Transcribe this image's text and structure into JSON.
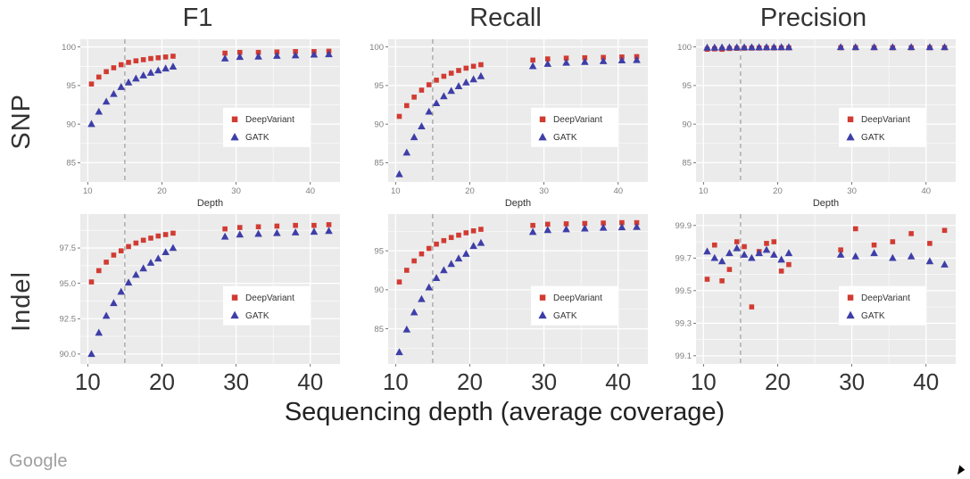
{
  "col_titles": [
    "F1",
    "Recall",
    "Precision"
  ],
  "row_labels": [
    "SNP",
    "Indel"
  ],
  "shared_xlabel": "Sequencing depth (average coverage)",
  "branding": "Google",
  "legend": {
    "items": [
      {
        "label": "DeepVariant",
        "color": "#d13b32",
        "marker": "square"
      },
      {
        "label": "GATK",
        "color": "#3e3ea8",
        "marker": "triangle"
      }
    ]
  },
  "chart_data": [
    {
      "type": "scatter",
      "row": "SNP",
      "metric": "F1",
      "xlabel": "Depth",
      "xlim": [
        9,
        44
      ],
      "ylim": [
        82.5,
        101
      ],
      "vline": 15,
      "xticks": [
        10,
        20,
        30,
        40
      ],
      "xtick_labels": [
        "10",
        "20",
        "30",
        "40"
      ],
      "yticks": [
        85,
        90,
        95,
        100
      ],
      "ytick_labels": [
        "85",
        "90",
        "95",
        "100"
      ],
      "series": [
        {
          "name": "DeepVariant",
          "x": [
            10.5,
            11.5,
            12.5,
            13.5,
            14.5,
            15.5,
            16.5,
            17.5,
            18.5,
            19.5,
            20.5,
            21.5,
            28.5,
            30.5,
            33,
            35.5,
            38,
            40.5,
            42.5
          ],
          "y": [
            95.2,
            96.1,
            96.8,
            97.3,
            97.7,
            98.0,
            98.2,
            98.35,
            98.5,
            98.6,
            98.7,
            98.8,
            99.2,
            99.3,
            99.3,
            99.35,
            99.4,
            99.4,
            99.45
          ]
        },
        {
          "name": "GATK",
          "x": [
            10.5,
            11.5,
            12.5,
            13.5,
            14.5,
            15.5,
            16.5,
            17.5,
            18.5,
            19.5,
            20.5,
            21.5,
            28.5,
            30.5,
            33,
            35.5,
            38,
            40.5,
            42.5
          ],
          "y": [
            90.0,
            91.6,
            92.9,
            93.9,
            94.8,
            95.4,
            95.9,
            96.3,
            96.65,
            96.95,
            97.2,
            97.45,
            98.5,
            98.7,
            98.75,
            98.85,
            98.9,
            99.0,
            99.05
          ]
        }
      ]
    },
    {
      "type": "scatter",
      "row": "SNP",
      "metric": "Recall",
      "xlabel": "Depth",
      "xlim": [
        9,
        44
      ],
      "ylim": [
        82.5,
        101
      ],
      "vline": 15,
      "xticks": [
        10,
        20,
        30,
        40
      ],
      "xtick_labels": [
        "10",
        "20",
        "30",
        "40"
      ],
      "yticks": [
        85,
        90,
        95,
        100
      ],
      "ytick_labels": [
        "85",
        "90",
        "95",
        "100"
      ],
      "series": [
        {
          "name": "DeepVariant",
          "x": [
            10.5,
            11.5,
            12.5,
            13.5,
            14.5,
            15.5,
            16.5,
            17.5,
            18.5,
            19.5,
            20.5,
            21.5,
            28.5,
            30.5,
            33,
            35.5,
            38,
            40.5,
            42.5
          ],
          "y": [
            91.0,
            92.4,
            93.5,
            94.4,
            95.1,
            95.7,
            96.2,
            96.6,
            96.95,
            97.25,
            97.5,
            97.7,
            98.3,
            98.45,
            98.55,
            98.6,
            98.65,
            98.7,
            98.75
          ]
        },
        {
          "name": "GATK",
          "x": [
            10.5,
            11.5,
            12.5,
            13.5,
            14.5,
            15.5,
            16.5,
            17.5,
            18.5,
            19.5,
            20.5,
            21.5,
            28.5,
            30.5,
            33,
            35.5,
            38,
            40.5,
            42.5
          ],
          "y": [
            83.5,
            86.3,
            88.3,
            89.7,
            91.6,
            92.7,
            93.6,
            94.3,
            94.9,
            95.4,
            95.8,
            96.2,
            97.5,
            97.8,
            97.95,
            98.05,
            98.15,
            98.25,
            98.3
          ]
        }
      ]
    },
    {
      "type": "scatter",
      "row": "SNP",
      "metric": "Precision",
      "xlabel": "Depth",
      "xlim": [
        9,
        44
      ],
      "ylim": [
        82.5,
        101
      ],
      "vline": 15,
      "xticks": [
        10,
        20,
        30,
        40
      ],
      "xtick_labels": [
        "10",
        "20",
        "30",
        "40"
      ],
      "yticks": [
        85,
        90,
        95,
        100
      ],
      "ytick_labels": [
        "85",
        "90",
        "95",
        "100"
      ],
      "series": [
        {
          "name": "DeepVariant",
          "x": [
            10.5,
            11.5,
            12.5,
            13.5,
            14.5,
            15.5,
            16.5,
            17.5,
            18.5,
            19.5,
            20.5,
            21.5,
            28.5,
            30.5,
            33,
            35.5,
            38,
            40.5,
            42.5
          ],
          "y": [
            99.7,
            99.75,
            99.7,
            99.8,
            99.82,
            99.84,
            99.85,
            99.86,
            99.87,
            99.87,
            99.88,
            99.88,
            99.9,
            99.9,
            99.9,
            99.9,
            99.9,
            99.9,
            99.9
          ]
        },
        {
          "name": "GATK",
          "x": [
            10.5,
            11.5,
            12.5,
            13.5,
            14.5,
            15.5,
            16.5,
            17.5,
            18.5,
            19.5,
            20.5,
            21.5,
            28.5,
            30.5,
            33,
            35.5,
            38,
            40.5,
            42.5
          ],
          "y": [
            99.9,
            99.92,
            99.93,
            99.94,
            99.94,
            99.95,
            99.95,
            99.95,
            99.96,
            99.96,
            99.96,
            99.96,
            99.97,
            99.97,
            99.97,
            99.97,
            99.97,
            99.97,
            99.97
          ]
        }
      ]
    },
    {
      "type": "scatter",
      "row": "Indel",
      "metric": "F1",
      "xlabel": "",
      "xlim": [
        9,
        44
      ],
      "ylim": [
        89.3,
        99.9
      ],
      "vline": 15,
      "xticks": [
        10,
        20,
        30,
        40
      ],
      "xtick_labels": [
        "10",
        "20",
        "30",
        "40"
      ],
      "yticks": [
        90.0,
        92.5,
        95.0,
        97.5
      ],
      "ytick_labels": [
        "90.0",
        "92.5",
        "95.0",
        "97.5"
      ],
      "series": [
        {
          "name": "DeepVariant",
          "x": [
            10.5,
            11.5,
            12.5,
            13.5,
            14.5,
            15.5,
            16.5,
            17.5,
            18.5,
            19.5,
            20.5,
            21.5,
            28.5,
            30.5,
            33,
            35.5,
            38,
            40.5,
            42.5
          ],
          "y": [
            95.1,
            95.9,
            96.5,
            97.0,
            97.3,
            97.6,
            97.85,
            98.05,
            98.2,
            98.35,
            98.45,
            98.55,
            98.85,
            98.95,
            99.0,
            99.05,
            99.1,
            99.1,
            99.15
          ]
        },
        {
          "name": "GATK",
          "x": [
            10.5,
            11.5,
            12.5,
            13.5,
            14.5,
            15.5,
            16.5,
            17.5,
            18.5,
            19.5,
            20.5,
            21.5,
            28.5,
            30.5,
            33,
            35.5,
            38,
            40.5,
            42.5
          ],
          "y": [
            90.0,
            91.5,
            92.7,
            93.6,
            94.4,
            95.05,
            95.6,
            96.05,
            96.45,
            96.75,
            97.2,
            97.5,
            98.3,
            98.45,
            98.5,
            98.55,
            98.6,
            98.65,
            98.7
          ]
        }
      ]
    },
    {
      "type": "scatter",
      "row": "Indel",
      "metric": "Recall",
      "xlabel": "",
      "xlim": [
        9,
        44
      ],
      "ylim": [
        80.5,
        99.7
      ],
      "vline": 15,
      "xticks": [
        10,
        20,
        30,
        40
      ],
      "xtick_labels": [
        "10",
        "20",
        "30",
        "40"
      ],
      "yticks": [
        85,
        90,
        95
      ],
      "ytick_labels": [
        "85",
        "90",
        "95"
      ],
      "series": [
        {
          "name": "DeepVariant",
          "x": [
            10.5,
            11.5,
            12.5,
            13.5,
            14.5,
            15.5,
            16.5,
            17.5,
            18.5,
            19.5,
            20.5,
            21.5,
            28.5,
            30.5,
            33,
            35.5,
            38,
            40.5,
            42.5
          ],
          "y": [
            91.0,
            92.5,
            93.7,
            94.6,
            95.3,
            95.85,
            96.3,
            96.7,
            97.0,
            97.3,
            97.55,
            97.75,
            98.25,
            98.4,
            98.45,
            98.5,
            98.55,
            98.6,
            98.6
          ]
        },
        {
          "name": "GATK",
          "x": [
            10.5,
            11.5,
            12.5,
            13.5,
            14.5,
            15.5,
            16.5,
            17.5,
            18.5,
            19.5,
            20.5,
            21.5,
            28.5,
            30.5,
            33,
            35.5,
            38,
            40.5,
            42.5
          ],
          "y": [
            82.0,
            84.9,
            87.1,
            88.8,
            90.3,
            91.5,
            92.5,
            93.3,
            94.0,
            94.6,
            95.6,
            96.0,
            97.4,
            97.65,
            97.75,
            97.85,
            97.95,
            98.0,
            98.05
          ]
        }
      ]
    },
    {
      "type": "scatter",
      "row": "Indel",
      "metric": "Precision",
      "xlabel": "",
      "xlim": [
        9,
        44
      ],
      "ylim": [
        99.05,
        99.97
      ],
      "vline": 15,
      "xticks": [
        10,
        20,
        30,
        40
      ],
      "xtick_labels": [
        "10",
        "20",
        "30",
        "40"
      ],
      "yticks": [
        99.1,
        99.3,
        99.5,
        99.7,
        99.9
      ],
      "ytick_labels": [
        "99.1",
        "99.3",
        "99.5",
        "99.7",
        "99.9"
      ],
      "series": [
        {
          "name": "DeepVariant",
          "x": [
            10.5,
            11.5,
            12.5,
            13.5,
            14.5,
            15.5,
            16.5,
            17.5,
            18.5,
            19.5,
            20.5,
            21.5,
            28.5,
            30.5,
            33,
            35.5,
            38,
            40.5,
            42.5
          ],
          "y": [
            99.57,
            99.78,
            99.56,
            99.63,
            99.8,
            99.77,
            99.4,
            99.74,
            99.79,
            99.8,
            99.62,
            99.66,
            99.75,
            99.88,
            99.78,
            99.8,
            99.85,
            99.79,
            99.87
          ]
        },
        {
          "name": "GATK",
          "x": [
            10.5,
            11.5,
            12.5,
            13.5,
            14.5,
            15.5,
            16.5,
            17.5,
            18.5,
            19.5,
            20.5,
            21.5,
            28.5,
            30.5,
            33,
            35.5,
            38,
            40.5,
            42.5
          ],
          "y": [
            99.74,
            99.7,
            99.68,
            99.73,
            99.76,
            99.72,
            99.7,
            99.73,
            99.75,
            99.72,
            99.69,
            99.73,
            99.72,
            99.71,
            99.73,
            99.7,
            99.71,
            99.68,
            99.66
          ]
        }
      ]
    }
  ],
  "style": {
    "panel_bg": "#ebebeb",
    "grid_color": "#ffffff",
    "vline_color": "#9e9e9e",
    "tick_label_color": "#7e7e7e",
    "big_tick_color": "#333333",
    "legend_bg": "#ffffff"
  }
}
